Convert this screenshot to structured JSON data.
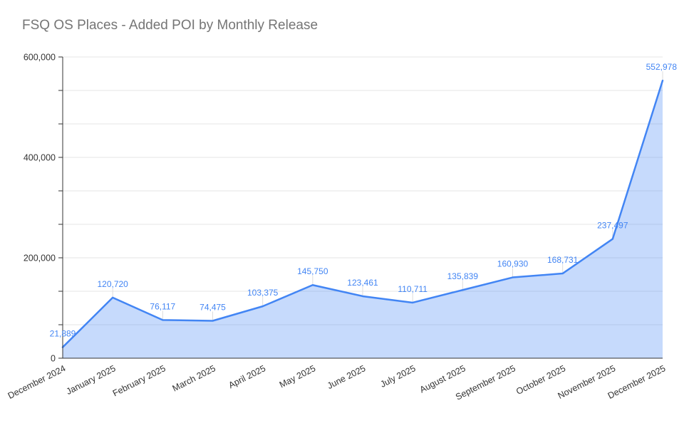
{
  "chart_data": {
    "type": "area",
    "title": "FSQ OS Places - Added POI by Monthly Release",
    "categories": [
      "December 2024",
      "January 2025",
      "February 2025",
      "March 2025",
      "April 2025",
      "May 2025",
      "June 2025",
      "July 2025",
      "August 2025",
      "September 2025",
      "October 2025",
      "November 2025",
      "December 2025"
    ],
    "values": [
      21889,
      120720,
      76117,
      74475,
      103375,
      145750,
      123461,
      110711,
      135839,
      160930,
      168731,
      237497,
      552978
    ],
    "data_labels_visible": true,
    "xlabel": "",
    "ylabel": "",
    "ylim": [
      0,
      600000
    ],
    "y_major_ticks": [
      0,
      200000,
      400000,
      600000
    ],
    "y_minor_divisions": 9,
    "grid": "horizontal",
    "legend": "none",
    "colors": {
      "line": "#4285f4",
      "fill": "rgba(66,133,244,0.30)",
      "data_label": "#4285f4",
      "title": "#757575",
      "axis": "#333333",
      "tick_label": "#333333",
      "gridline": "#e6e6e6",
      "leader_line": "#dcdcdc",
      "background": "#ffffff"
    }
  }
}
